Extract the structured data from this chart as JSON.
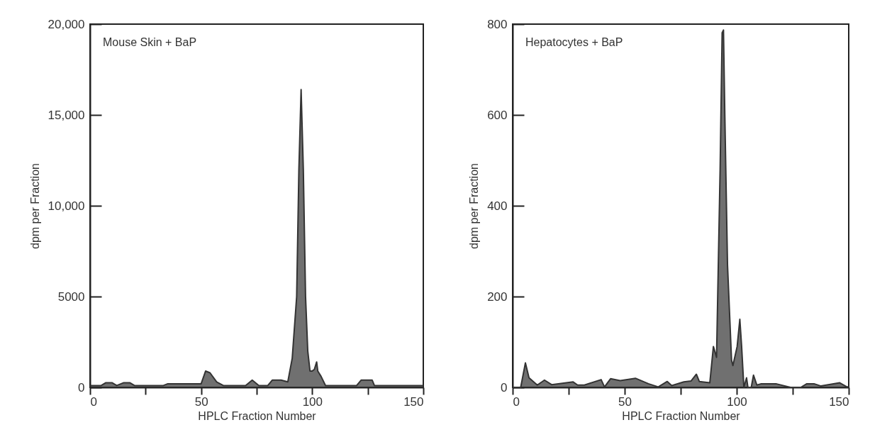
{
  "chart_data": [
    {
      "type": "area",
      "annotations": [
        "Mouse Skin + BaP"
      ],
      "xlabel": "HPLC Fraction Number",
      "ylabel": "dpm per Fraction",
      "xlim": [
        0,
        150
      ],
      "ylim": [
        0,
        20000
      ],
      "xticks": [
        0,
        {
          "value": 25,
          "label": null
        },
        50,
        {
          "value": 75,
          "label": null
        },
        100,
        {
          "value": 125,
          "label": null
        },
        150
      ],
      "yticks": [
        0,
        5000,
        {
          "value": 10000,
          "label": "10,000"
        },
        {
          "value": 15000,
          "label": "15,000"
        },
        {
          "value": 20000,
          "label": "20,000"
        }
      ],
      "grid": false,
      "series": [
        {
          "color": "#333333",
          "x": [
            0,
            5,
            7,
            10,
            12,
            15,
            18,
            20,
            33,
            35,
            50,
            52,
            54,
            57,
            60,
            70,
            73,
            76,
            80,
            82,
            86,
            89,
            91,
            93,
            94,
            95,
            96,
            97,
            98,
            99,
            100,
            101,
            102,
            102.5,
            104,
            106,
            120,
            122,
            127,
            128,
            150
          ],
          "values": [
            100,
            100,
            250,
            250,
            100,
            250,
            250,
            100,
            100,
            200,
            200,
            900,
            800,
            300,
            100,
            100,
            400,
            100,
            100,
            400,
            400,
            300,
            1600,
            5000,
            12000,
            16400,
            12000,
            5000,
            2000,
            900,
            900,
            1000,
            1400,
            900,
            600,
            100,
            100,
            400,
            400,
            100,
            100
          ]
        }
      ]
    },
    {
      "type": "area",
      "annotations": [
        "Hepatocytes + BaP"
      ],
      "xlabel": "HPLC Fraction Number",
      "ylabel": "dpm per Fraction",
      "xlim": [
        0,
        150
      ],
      "ylim": [
        0,
        800
      ],
      "xticks": [
        0,
        {
          "value": 25,
          "label": null
        },
        50,
        {
          "value": 75,
          "label": null
        },
        100,
        {
          "value": 125,
          "label": null
        },
        150
      ],
      "yticks": [
        0,
        200,
        400,
        600,
        800
      ],
      "grid": false,
      "series": [
        {
          "color": "#333333",
          "x": [
            0,
            3.6,
            5.7,
            7.3,
            11,
            14.2,
            17.4,
            27,
            29,
            32,
            39.5,
            41,
            43.7,
            48,
            54.8,
            60.6,
            65,
            69,
            71,
            76.4,
            79.6,
            82,
            83.3,
            88,
            89.6,
            91,
            92.6,
            93.5,
            94.1,
            94.7,
            95.9,
            97.7,
            98.3,
            100.2,
            101.4,
            102.2,
            103.2,
            104.4,
            105,
            106.5,
            107.5,
            109,
            111,
            117.5,
            124,
            128.6,
            131.3,
            134.5,
            137.6,
            146,
            149.2,
            150
          ],
          "values": [
            0,
            0,
            54,
            21,
            5,
            16,
            6,
            12,
            5,
            5,
            17,
            1,
            19,
            15,
            20,
            8,
            1,
            13,
            4,
            12,
            14,
            29,
            13,
            10,
            90,
            66,
            480,
            781,
            787,
            600,
            270,
            60,
            48,
            90,
            150,
            90,
            0,
            21,
            0,
            0,
            27,
            5,
            8,
            8,
            0,
            0,
            8,
            8,
            3,
            10,
            1,
            1
          ]
        }
      ]
    }
  ]
}
